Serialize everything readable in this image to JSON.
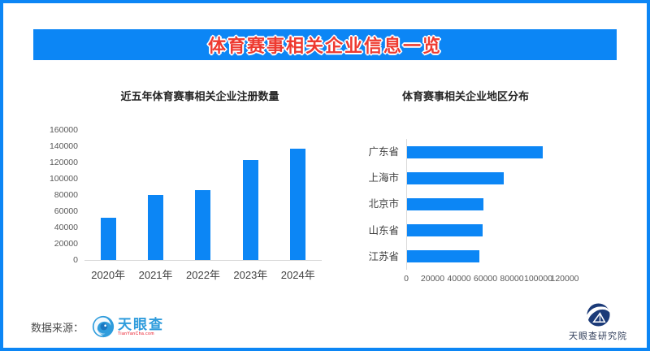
{
  "header": {
    "title": "体育赛事相关企业信息一览"
  },
  "chart_data": [
    {
      "type": "bar",
      "orientation": "vertical",
      "title": "近五年体育赛事相关企业注册数量",
      "categories": [
        "2020年",
        "2021年",
        "2022年",
        "2023年",
        "2024年"
      ],
      "values": [
        52000,
        80000,
        86000,
        123000,
        137000
      ],
      "ylabel": "",
      "ylim": [
        0,
        160000
      ],
      "yticks": [
        0,
        20000,
        40000,
        60000,
        80000,
        100000,
        120000,
        140000,
        160000
      ],
      "grid": false,
      "bar_color": "#0c86f5"
    },
    {
      "type": "bar",
      "orientation": "horizontal",
      "title": "体育赛事相关企业地区分布",
      "categories": [
        "广东省",
        "上海市",
        "北京市",
        "山东省",
        "江苏省"
      ],
      "values": [
        103000,
        73000,
        58000,
        57000,
        55000
      ],
      "xlabel": "",
      "xlim": [
        0,
        120000
      ],
      "xticks": [
        0,
        20000,
        40000,
        60000,
        80000,
        100000,
        120000
      ],
      "grid": false,
      "bar_color": "#0c86f5"
    }
  ],
  "footer": {
    "source_label": "数据来源：",
    "tianyancha": {
      "name": "天眼查",
      "subtext": "TianYanCha.com"
    },
    "research_name": "天眼查研究院"
  },
  "colors": {
    "accent_blue": "#0c86f5",
    "banner_title_red": "#ee3a30",
    "axis_line": "#d9d9d9",
    "axis_text": "#595959",
    "logo_blue": "#2f9cdc",
    "logo_red": "#e60012",
    "logo_navy": "#1b3a78"
  }
}
